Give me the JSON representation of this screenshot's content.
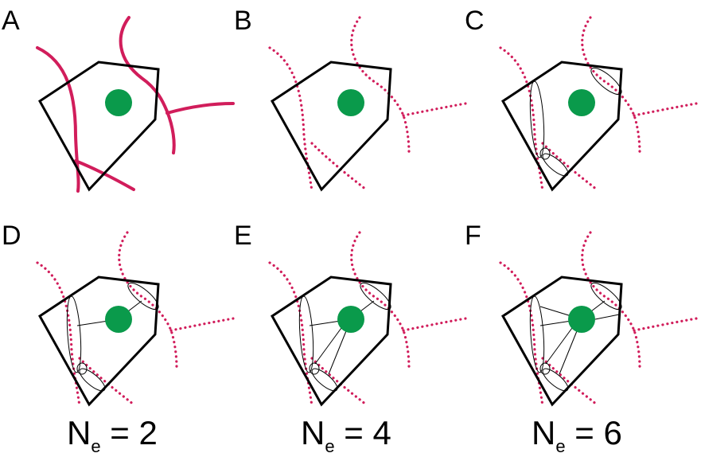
{
  "panels": [
    {
      "letter": "A",
      "style": "solid",
      "segments": false,
      "edges": 0
    },
    {
      "letter": "B",
      "style": "dotted",
      "segments": false,
      "edges": 0
    },
    {
      "letter": "C",
      "style": "dotted",
      "segments": true,
      "edges": 0
    },
    {
      "letter": "D",
      "style": "dotted",
      "segments": true,
      "edges": 2
    },
    {
      "letter": "E",
      "style": "dotted",
      "segments": true,
      "edges": 4
    },
    {
      "letter": "F",
      "style": "dotted",
      "segments": true,
      "edges": 6
    }
  ],
  "labels": [
    {
      "base": "N",
      "sub": "e",
      "rest": " = 2"
    },
    {
      "base": "N",
      "sub": "e",
      "rest": " = 4"
    },
    {
      "base": "N",
      "sub": "e",
      "rest": " = 6"
    }
  ],
  "colors": {
    "fiber": "#d11d5b",
    "cell": "#0a9a4b",
    "outline": "#000000"
  }
}
